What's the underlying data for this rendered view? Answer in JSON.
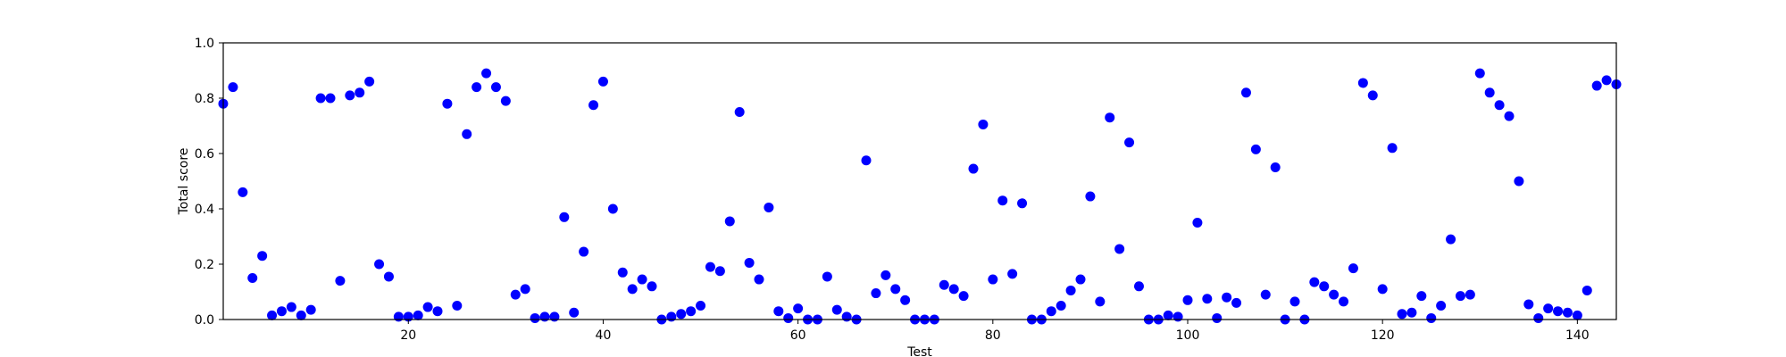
{
  "chart_data": {
    "type": "scatter",
    "title": "",
    "xlabel": "Test",
    "ylabel": "Total score",
    "xlim": [
      1,
      144
    ],
    "ylim": [
      0,
      1.0
    ],
    "x_ticks": [
      20,
      40,
      60,
      80,
      100,
      120,
      140
    ],
    "y_ticks": [
      0.0,
      0.2,
      0.4,
      0.6,
      0.8,
      1.0
    ],
    "y_tick_labels": [
      "0.0",
      "0.2",
      "0.4",
      "0.6",
      "0.8",
      "1.0"
    ],
    "grid": false,
    "marker_color": "#0000ff",
    "points": [
      {
        "x": 1,
        "y": 0.78
      },
      {
        "x": 2,
        "y": 0.84
      },
      {
        "x": 3,
        "y": 0.46
      },
      {
        "x": 4,
        "y": 0.15
      },
      {
        "x": 5,
        "y": 0.23
      },
      {
        "x": 6,
        "y": 0.015
      },
      {
        "x": 7,
        "y": 0.03
      },
      {
        "x": 8,
        "y": 0.045
      },
      {
        "x": 9,
        "y": 0.015
      },
      {
        "x": 10,
        "y": 0.035
      },
      {
        "x": 11,
        "y": 0.8
      },
      {
        "x": 12,
        "y": 0.8
      },
      {
        "x": 13,
        "y": 0.14
      },
      {
        "x": 14,
        "y": 0.81
      },
      {
        "x": 15,
        "y": 0.82
      },
      {
        "x": 16,
        "y": 0.86
      },
      {
        "x": 17,
        "y": 0.2
      },
      {
        "x": 18,
        "y": 0.155
      },
      {
        "x": 19,
        "y": 0.01
      },
      {
        "x": 20,
        "y": 0.01
      },
      {
        "x": 21,
        "y": 0.015
      },
      {
        "x": 22,
        "y": 0.045
      },
      {
        "x": 23,
        "y": 0.03
      },
      {
        "x": 24,
        "y": 0.78
      },
      {
        "x": 25,
        "y": 0.05
      },
      {
        "x": 26,
        "y": 0.67
      },
      {
        "x": 27,
        "y": 0.84
      },
      {
        "x": 28,
        "y": 0.89
      },
      {
        "x": 29,
        "y": 0.84
      },
      {
        "x": 30,
        "y": 0.79
      },
      {
        "x": 31,
        "y": 0.09
      },
      {
        "x": 32,
        "y": 0.11
      },
      {
        "x": 33,
        "y": 0.005
      },
      {
        "x": 34,
        "y": 0.01
      },
      {
        "x": 35,
        "y": 0.01
      },
      {
        "x": 36,
        "y": 0.37
      },
      {
        "x": 37,
        "y": 0.025
      },
      {
        "x": 38,
        "y": 0.245
      },
      {
        "x": 39,
        "y": 0.775
      },
      {
        "x": 40,
        "y": 0.86
      },
      {
        "x": 41,
        "y": 0.4
      },
      {
        "x": 42,
        "y": 0.17
      },
      {
        "x": 43,
        "y": 0.11
      },
      {
        "x": 44,
        "y": 0.145
      },
      {
        "x": 45,
        "y": 0.12
      },
      {
        "x": 46,
        "y": 0.0
      },
      {
        "x": 47,
        "y": 0.01
      },
      {
        "x": 48,
        "y": 0.02
      },
      {
        "x": 49,
        "y": 0.03
      },
      {
        "x": 50,
        "y": 0.05
      },
      {
        "x": 51,
        "y": 0.19
      },
      {
        "x": 52,
        "y": 0.175
      },
      {
        "x": 53,
        "y": 0.355
      },
      {
        "x": 54,
        "y": 0.75
      },
      {
        "x": 55,
        "y": 0.205
      },
      {
        "x": 56,
        "y": 0.145
      },
      {
        "x": 57,
        "y": 0.405
      },
      {
        "x": 58,
        "y": 0.03
      },
      {
        "x": 59,
        "y": 0.005
      },
      {
        "x": 60,
        "y": 0.04
      },
      {
        "x": 61,
        "y": 0.0
      },
      {
        "x": 62,
        "y": 0.0
      },
      {
        "x": 63,
        "y": 0.155
      },
      {
        "x": 64,
        "y": 0.035
      },
      {
        "x": 65,
        "y": 0.01
      },
      {
        "x": 66,
        "y": 0.0
      },
      {
        "x": 67,
        "y": 0.575
      },
      {
        "x": 68,
        "y": 0.095
      },
      {
        "x": 69,
        "y": 0.16
      },
      {
        "x": 70,
        "y": 0.11
      },
      {
        "x": 71,
        "y": 0.07
      },
      {
        "x": 72,
        "y": 0.0
      },
      {
        "x": 73,
        "y": 0.0
      },
      {
        "x": 74,
        "y": 0.0
      },
      {
        "x": 75,
        "y": 0.125
      },
      {
        "x": 76,
        "y": 0.11
      },
      {
        "x": 77,
        "y": 0.085
      },
      {
        "x": 78,
        "y": 0.545
      },
      {
        "x": 79,
        "y": 0.705
      },
      {
        "x": 80,
        "y": 0.145
      },
      {
        "x": 81,
        "y": 0.43
      },
      {
        "x": 82,
        "y": 0.165
      },
      {
        "x": 83,
        "y": 0.42
      },
      {
        "x": 84,
        "y": 0.0
      },
      {
        "x": 85,
        "y": 0.0
      },
      {
        "x": 86,
        "y": 0.03
      },
      {
        "x": 87,
        "y": 0.05
      },
      {
        "x": 88,
        "y": 0.105
      },
      {
        "x": 89,
        "y": 0.145
      },
      {
        "x": 90,
        "y": 0.445
      },
      {
        "x": 91,
        "y": 0.065
      },
      {
        "x": 92,
        "y": 0.73
      },
      {
        "x": 93,
        "y": 0.255
      },
      {
        "x": 94,
        "y": 0.64
      },
      {
        "x": 95,
        "y": 0.12
      },
      {
        "x": 96,
        "y": 0.0
      },
      {
        "x": 97,
        "y": 0.0
      },
      {
        "x": 98,
        "y": 0.015
      },
      {
        "x": 99,
        "y": 0.01
      },
      {
        "x": 100,
        "y": 0.07
      },
      {
        "x": 101,
        "y": 0.35
      },
      {
        "x": 102,
        "y": 0.075
      },
      {
        "x": 103,
        "y": 0.005
      },
      {
        "x": 104,
        "y": 0.08
      },
      {
        "x": 105,
        "y": 0.06
      },
      {
        "x": 106,
        "y": 0.82
      },
      {
        "x": 107,
        "y": 0.615
      },
      {
        "x": 108,
        "y": 0.09
      },
      {
        "x": 109,
        "y": 0.55
      },
      {
        "x": 110,
        "y": 0.0
      },
      {
        "x": 111,
        "y": 0.065
      },
      {
        "x": 112,
        "y": 0.0
      },
      {
        "x": 113,
        "y": 0.135
      },
      {
        "x": 114,
        "y": 0.12
      },
      {
        "x": 115,
        "y": 0.09
      },
      {
        "x": 116,
        "y": 0.065
      },
      {
        "x": 117,
        "y": 0.185
      },
      {
        "x": 118,
        "y": 0.855
      },
      {
        "x": 119,
        "y": 0.81
      },
      {
        "x": 120,
        "y": 0.11
      },
      {
        "x": 121,
        "y": 0.62
      },
      {
        "x": 122,
        "y": 0.02
      },
      {
        "x": 123,
        "y": 0.025
      },
      {
        "x": 124,
        "y": 0.085
      },
      {
        "x": 125,
        "y": 0.005
      },
      {
        "x": 126,
        "y": 0.05
      },
      {
        "x": 127,
        "y": 0.29
      },
      {
        "x": 128,
        "y": 0.085
      },
      {
        "x": 129,
        "y": 0.09
      },
      {
        "x": 130,
        "y": 0.89
      },
      {
        "x": 131,
        "y": 0.82
      },
      {
        "x": 132,
        "y": 0.775
      },
      {
        "x": 133,
        "y": 0.735
      },
      {
        "x": 134,
        "y": 0.5
      },
      {
        "x": 135,
        "y": 0.055
      },
      {
        "x": 136,
        "y": 0.005
      },
      {
        "x": 137,
        "y": 0.04
      },
      {
        "x": 138,
        "y": 0.03
      },
      {
        "x": 139,
        "y": 0.025
      },
      {
        "x": 140,
        "y": 0.015
      },
      {
        "x": 141,
        "y": 0.105
      },
      {
        "x": 142,
        "y": 0.845
      },
      {
        "x": 143,
        "y": 0.865
      },
      {
        "x": 144,
        "y": 0.85
      }
    ]
  }
}
